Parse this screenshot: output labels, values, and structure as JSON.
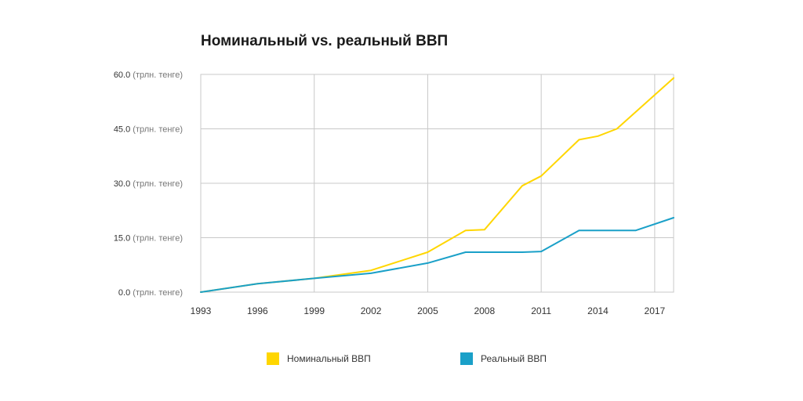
{
  "colors": {
    "nominal": "#FFD600",
    "real": "#1AA0C8",
    "grid": "#c8c8c8",
    "axis_text": "#333333"
  },
  "chart_data": {
    "type": "line",
    "title": "Номинальный vs. реальный ВВП",
    "xlabel": "",
    "ylabel": "",
    "y_unit": "(трлн. тенге)",
    "xlim": [
      1993,
      2018
    ],
    "ylim": [
      0,
      60
    ],
    "y_ticks": [
      {
        "value": 0,
        "label": "0.0",
        "unit": "(трлн. тенге)"
      },
      {
        "value": 15,
        "label": "15.0",
        "unit": "(трлн. тенге)"
      },
      {
        "value": 30,
        "label": "30.0",
        "unit": "(трлн. тенге)"
      },
      {
        "value": 45,
        "label": "45.0",
        "unit": "(трлн. тенге)"
      },
      {
        "value": 60,
        "label": "60.0",
        "unit": "(трлн. тенге)"
      }
    ],
    "x_ticks": [
      "1993",
      "1996",
      "1999",
      "2002",
      "2005",
      "2008",
      "2011",
      "2014",
      "2017"
    ],
    "vertical_grid_years": [
      1993,
      1999,
      2005,
      2011,
      2017
    ],
    "grid": true,
    "legend_position": "bottom",
    "series": [
      {
        "name": "Номинальный ВВП",
        "color_key": "nominal",
        "points": [
          [
            1993,
            0.0
          ],
          [
            1996,
            2.3
          ],
          [
            1999,
            3.8
          ],
          [
            2002,
            6.0
          ],
          [
            2005,
            11.0
          ],
          [
            2007,
            17.0
          ],
          [
            2008,
            17.2
          ],
          [
            2010,
            29.3
          ],
          [
            2011,
            32.0
          ],
          [
            2013,
            42.0
          ],
          [
            2014,
            43.0
          ],
          [
            2015,
            45.0
          ],
          [
            2018,
            59.0
          ]
        ]
      },
      {
        "name": "Реальный ВВП",
        "color_key": "real",
        "points": [
          [
            1993,
            0.0
          ],
          [
            1996,
            2.3
          ],
          [
            1999,
            3.8
          ],
          [
            2002,
            5.2
          ],
          [
            2005,
            8.0
          ],
          [
            2007,
            11.0
          ],
          [
            2008,
            11.0
          ],
          [
            2010,
            11.0
          ],
          [
            2011,
            11.2
          ],
          [
            2013,
            17.0
          ],
          [
            2014,
            17.0
          ],
          [
            2015,
            17.0
          ],
          [
            2016,
            17.0
          ],
          [
            2018,
            20.5
          ]
        ]
      }
    ]
  },
  "legend": {
    "items": [
      {
        "label": "Номинальный ВВП",
        "color_key": "nominal"
      },
      {
        "label": "Реальный ВВП",
        "color_key": "real"
      }
    ]
  }
}
